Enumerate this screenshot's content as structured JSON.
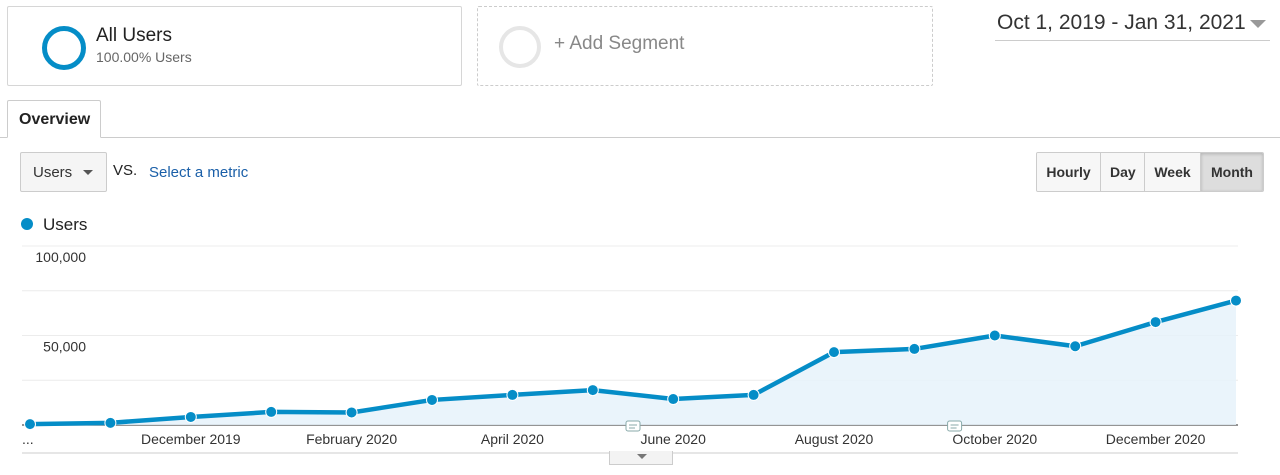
{
  "segments": {
    "active": {
      "title": "All Users",
      "subtitle": "100.00% Users"
    },
    "add_label": "+ Add Segment"
  },
  "date_range": "Oct 1, 2019 - Jan 31, 2021",
  "tabs": [
    {
      "label": "Overview"
    }
  ],
  "metric": {
    "selected": "Users",
    "vs_label": "VS.",
    "select_metric_label": "Select a metric"
  },
  "granularity": {
    "options": [
      "Hourly",
      "Day",
      "Week",
      "Month"
    ],
    "active": "Month"
  },
  "legend": {
    "label": "Users",
    "color": "#058dc7"
  },
  "colors": {
    "accent": "#058dc7",
    "fill": "#e6f2fa"
  },
  "chart_data": {
    "type": "area",
    "title": "",
    "xlabel": "",
    "ylabel": "",
    "x": [
      "Oct 2019",
      "Nov 2019",
      "Dec 2019",
      "Jan 2020",
      "Feb 2020",
      "Mar 2020",
      "Apr 2020",
      "May 2020",
      "Jun 2020",
      "Jul 2020",
      "Aug 2020",
      "Sep 2020",
      "Oct 2020",
      "Nov 2020",
      "Dec 2020",
      "Jan 2021"
    ],
    "series": [
      {
        "name": "Users",
        "values": [
          500,
          1200,
          4500,
          7300,
          7000,
          14000,
          16800,
          19500,
          14500,
          16800,
          40700,
          42500,
          50000,
          44000,
          57500,
          69500
        ]
      }
    ],
    "x_tick_labels": [
      "...",
      "December 2019",
      "February 2020",
      "April 2020",
      "June 2020",
      "August 2020",
      "October 2020",
      "December 2020"
    ],
    "x_tick_indices": [
      0,
      2,
      4,
      6,
      8,
      10,
      12,
      14
    ],
    "y_tick_labels": [
      "50,000",
      "100,000"
    ],
    "y_tick_values": [
      50000,
      100000
    ],
    "ylim": [
      0,
      100000
    ],
    "grid": true,
    "annotation_indices": [
      7,
      11
    ]
  }
}
